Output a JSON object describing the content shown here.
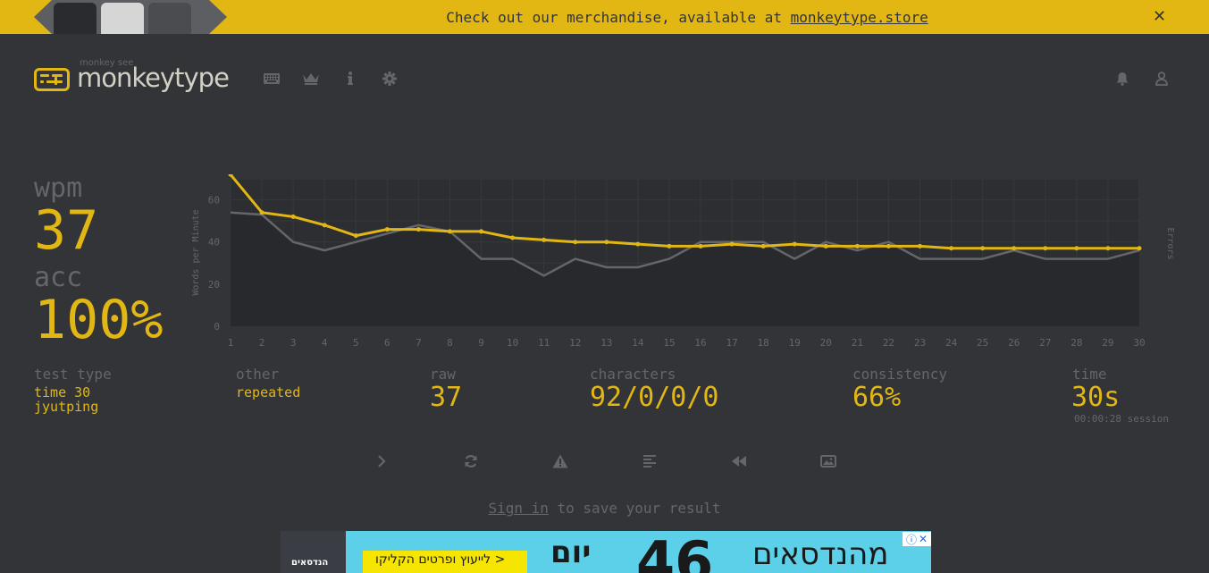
{
  "banner": {
    "text_prefix": "Check out our merchandise, available at ",
    "link_text": "monkeytype.store",
    "close_glyph": "✕"
  },
  "header": {
    "logo_sub": "monkey see",
    "logo_text": "monkeytype",
    "nav_icons": [
      "keyboard-icon",
      "crown-icon",
      "info-icon",
      "gear-icon"
    ],
    "right_icons": [
      "bell-icon",
      "user-icon"
    ]
  },
  "result": {
    "wpm_label": "wpm",
    "wpm_value": "37",
    "acc_label": "acc",
    "acc_value": "100%",
    "test_type_label": "test type",
    "test_type_line1": "time 30",
    "test_type_line2": "jyutping",
    "other_label": "other",
    "other_value": "repeated",
    "raw_label": "raw",
    "raw_value": "37",
    "characters_label": "characters",
    "characters_value": "92/0/0/0",
    "consistency_label": "consistency",
    "consistency_value": "66%",
    "time_label": "time",
    "time_value": "30s",
    "session_text": "00:00:28 session"
  },
  "actions": {
    "icons": [
      "next-test-icon",
      "restart-icon",
      "report-icon",
      "words-history-icon",
      "replay-icon",
      "screenshot-icon"
    ]
  },
  "signin": {
    "link_text": "Sign in",
    "suffix": " to save your result"
  },
  "ad": {
    "left_text": "הנדסאים",
    "cta_text": "לייעוץ ופרטים הקליקו >",
    "big_text_1": "יום",
    "big_text_2": "46",
    "big_text_3": "מהנדסאים"
  },
  "colors": {
    "background": "#323437",
    "accent": "#e2b714",
    "text_dim": "#646669",
    "text_main": "#d1d0c5",
    "raw_line": "#646669"
  },
  "chart_data": {
    "type": "line",
    "ylabel": "Words per Minute",
    "y2label": "Errors",
    "ylim": [
      0,
      70
    ],
    "yticks": [
      0,
      20,
      40,
      60
    ],
    "x": [
      1,
      2,
      3,
      4,
      5,
      6,
      7,
      8,
      9,
      10,
      11,
      12,
      13,
      14,
      15,
      16,
      17,
      18,
      19,
      20,
      21,
      22,
      23,
      24,
      25,
      26,
      27,
      28,
      29,
      30
    ],
    "series": [
      {
        "name": "wpm",
        "color": "#e2b714",
        "values": [
          72,
          54,
          52,
          48,
          43,
          46,
          46,
          45,
          45,
          42,
          41,
          40,
          40,
          39,
          38,
          38,
          39,
          38,
          39,
          38,
          38,
          38,
          38,
          37,
          37,
          37,
          37,
          37,
          37,
          37
        ]
      },
      {
        "name": "raw",
        "color": "#646669",
        "values": [
          54,
          53,
          40,
          36,
          40,
          44,
          48,
          45,
          32,
          32,
          24,
          32,
          28,
          28,
          32,
          40,
          40,
          40,
          32,
          40,
          36,
          40,
          32,
          32,
          32,
          36,
          32,
          32,
          32,
          36
        ]
      }
    ],
    "grid": true
  }
}
